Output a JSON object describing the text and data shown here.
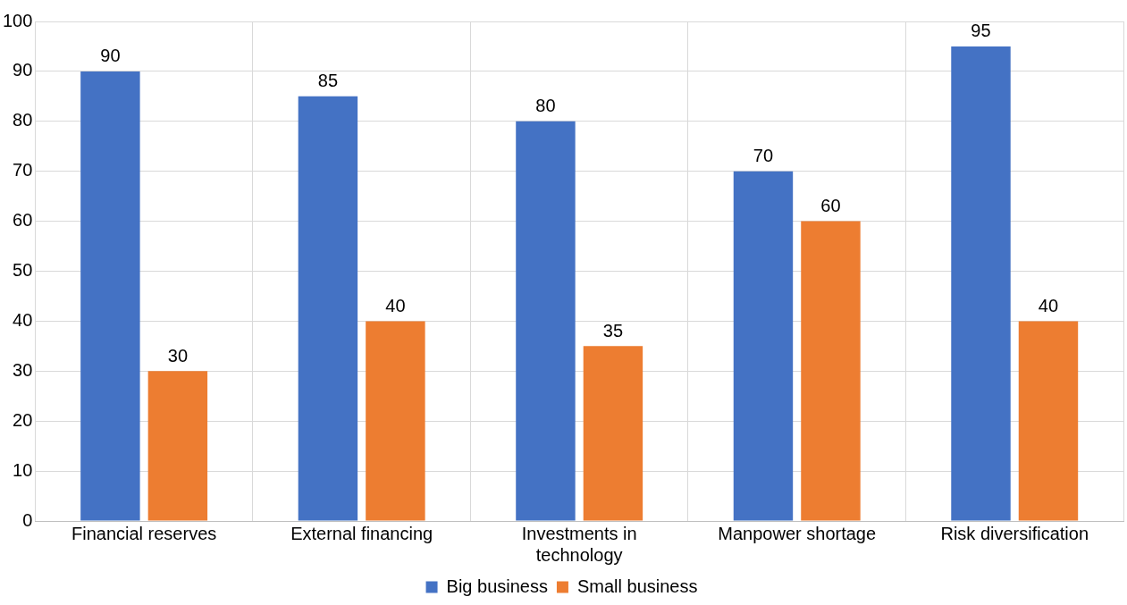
{
  "chart_data": {
    "type": "bar",
    "categories": [
      "Financial reserves",
      "External financing",
      "Investments in technology",
      "Manpower shortage",
      "Risk diversification"
    ],
    "series": [
      {
        "name": "Big business",
        "color": "#4472c4",
        "values": [
          90,
          85,
          80,
          70,
          95
        ]
      },
      {
        "name": "Small business",
        "color": "#ed7d31",
        "values": [
          30,
          40,
          35,
          60,
          40
        ]
      }
    ],
    "ylim": [
      0,
      100
    ],
    "yticks": [
      0,
      10,
      20,
      30,
      40,
      50,
      60,
      70,
      80,
      90,
      100
    ],
    "grid": true,
    "legend": "bottom",
    "data_labels": true
  }
}
